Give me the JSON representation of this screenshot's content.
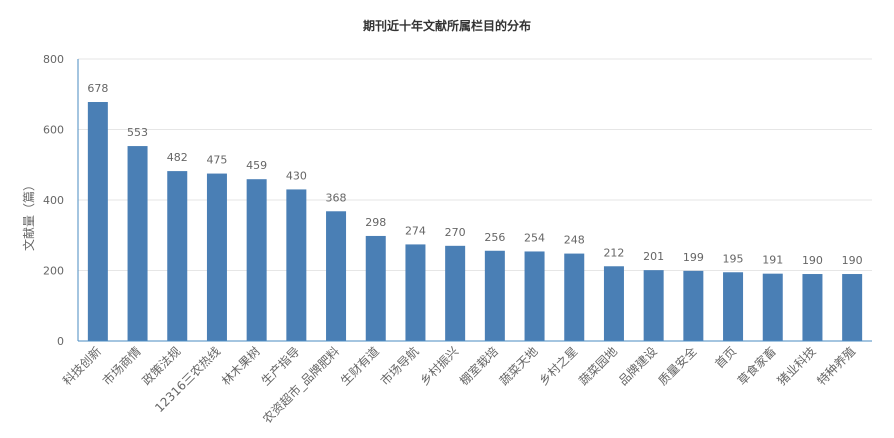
{
  "chart_data": {
    "type": "bar",
    "title": "期刊近十年文献所属栏目的分布",
    "xlabel": "",
    "ylabel": "文献量（篇）",
    "ylim": [
      0,
      800
    ],
    "yticks": [
      0,
      200,
      400,
      600,
      800
    ],
    "grid": true,
    "bar_color": "#4a7fb5",
    "categories": [
      "科技创新",
      "市场商情",
      "政策法规",
      "12316三农热线",
      "林木果树",
      "生产指导",
      "农资超市_品牌肥料",
      "生财有道",
      "市场导航",
      "乡村振兴",
      "棚室栽培",
      "蔬菜天地",
      "乡村之星",
      "蔬菜园地",
      "品牌建设",
      "质量安全",
      "首页",
      "草食家畜",
      "猪业科技",
      "特种养殖"
    ],
    "values": [
      678,
      553,
      482,
      475,
      459,
      430,
      368,
      298,
      274,
      270,
      256,
      254,
      248,
      212,
      201,
      199,
      195,
      191,
      190,
      190
    ]
  }
}
